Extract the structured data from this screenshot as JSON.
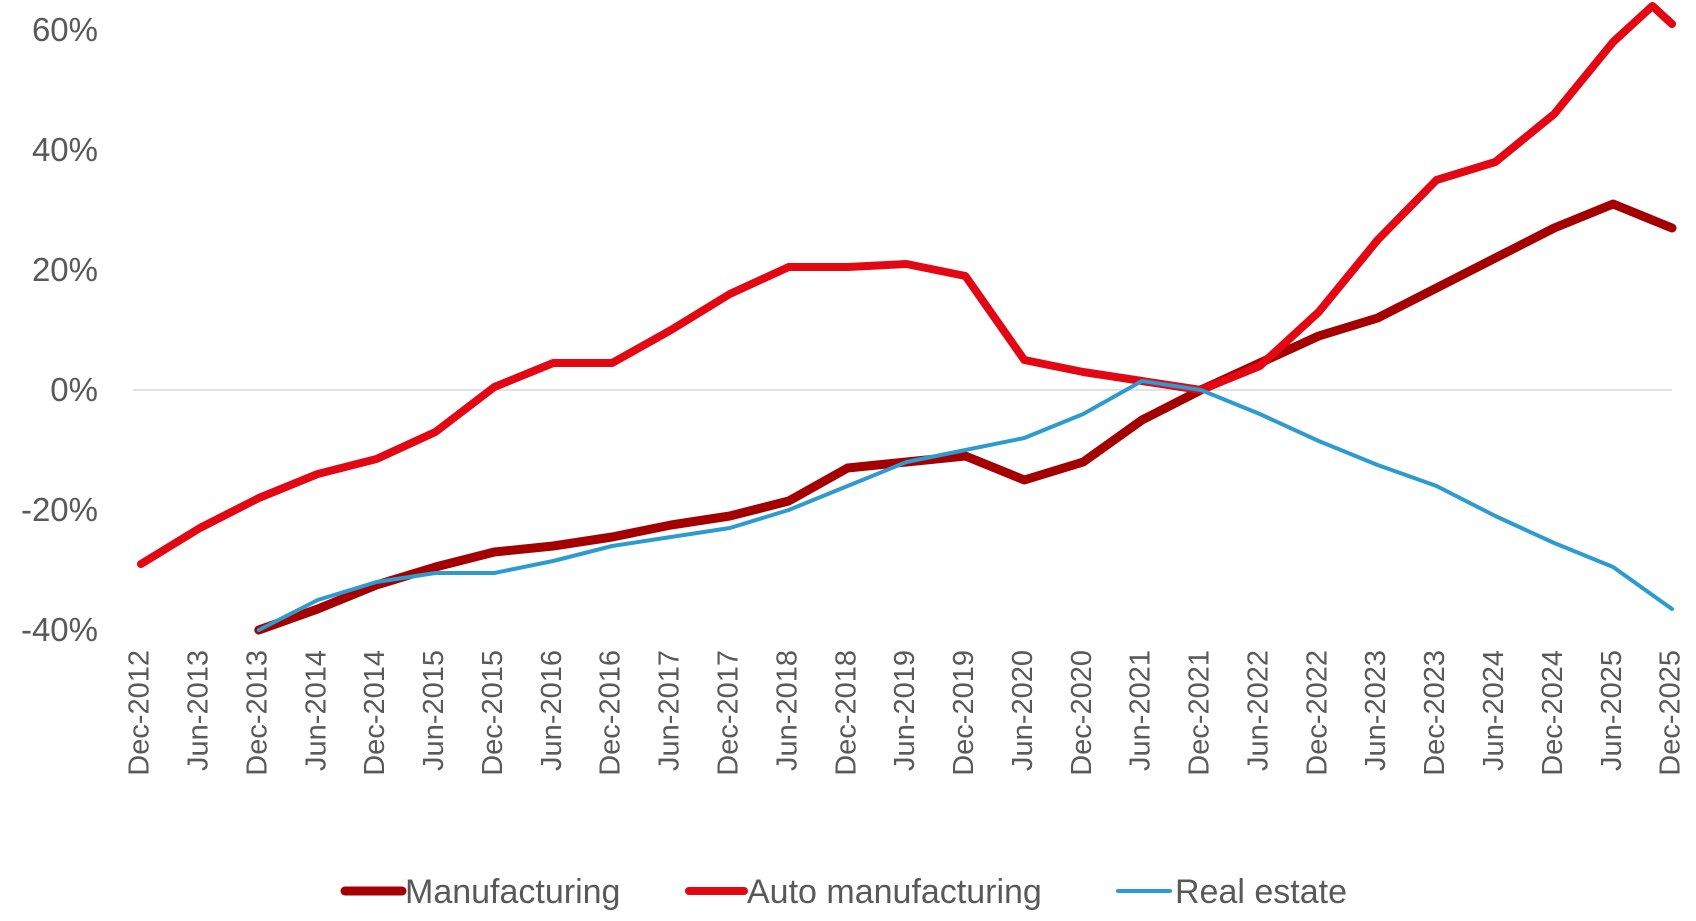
{
  "chart_data": {
    "type": "line",
    "title": "",
    "xlabel": "",
    "ylabel": "",
    "x_ticks": [
      "Dec-2012",
      "Jun-2013",
      "Dec-2013",
      "Jun-2014",
      "Dec-2014",
      "Jun-2015",
      "Dec-2015",
      "Jun-2016",
      "Dec-2016",
      "Jun-2017",
      "Dec-2017",
      "Jun-2018",
      "Dec-2018",
      "Jun-2019",
      "Dec-2019",
      "Jun-2020",
      "Dec-2020",
      "Jun-2021",
      "Dec-2021",
      "Jun-2022",
      "Dec-2022",
      "Jun-2023",
      "Dec-2023",
      "Jun-2024",
      "Dec-2024",
      "Jun-2025",
      "Dec-2025"
    ],
    "y_ticks": [
      "60%",
      "40%",
      "20%",
      "0%",
      "-20%",
      "-40%"
    ],
    "ylim": [
      -40,
      60
    ],
    "grid": false,
    "zero_line": true,
    "legend_position": "bottom",
    "series": [
      {
        "name": "Manufacturing",
        "color": "#a50000",
        "x": [
          "Dec-2013",
          "Jun-2014",
          "Dec-2014",
          "Jun-2015",
          "Dec-2015",
          "Jun-2016",
          "Dec-2016",
          "Jun-2017",
          "Dec-2017",
          "Jun-2018",
          "Dec-2018",
          "Jun-2019",
          "Dec-2019",
          "Jun-2020",
          "Dec-2020",
          "Jun-2021",
          "Dec-2021",
          "Jun-2022",
          "Dec-2022",
          "Jun-2023",
          "Dec-2023",
          "Jun-2024",
          "Dec-2024",
          "Jun-2025",
          "Dec-2025"
        ],
        "values": [
          -40,
          -36.5,
          -32.5,
          -29.5,
          -27,
          -26,
          -24.5,
          -22.5,
          -21,
          -18.5,
          -13,
          -12,
          -11,
          -15,
          -12,
          -5,
          0,
          4.5,
          9,
          12,
          17,
          22,
          27,
          31,
          27
        ]
      },
      {
        "name": "Auto manufacturing",
        "color": "#e30613",
        "x": [
          "Dec-2012",
          "Jun-2013",
          "Dec-2013",
          "Jun-2014",
          "Dec-2014",
          "Jun-2015",
          "Dec-2015",
          "Jun-2016",
          "Dec-2016",
          "Jun-2017",
          "Dec-2017",
          "Jun-2018",
          "Dec-2018",
          "Jun-2019",
          "Dec-2019",
          "Jun-2020",
          "Dec-2020",
          "Jun-2021",
          "Dec-2021",
          "Jun-2022",
          "Dec-2022",
          "Jun-2023",
          "Dec-2023",
          "Jun-2024",
          "Dec-2024",
          "Jun-2025",
          "Oct-2025",
          "Dec-2025"
        ],
        "values": [
          -29,
          -23,
          -18,
          -14,
          -11.5,
          -7,
          0.5,
          4.5,
          4.5,
          10,
          16,
          20.5,
          20.5,
          21,
          19,
          5,
          3,
          1.5,
          0,
          4,
          13,
          25,
          35,
          38,
          46,
          58,
          64,
          61
        ]
      },
      {
        "name": "Real estate",
        "color": "#2e9bcf",
        "x": [
          "Dec-2013",
          "Jun-2014",
          "Dec-2014",
          "Jun-2015",
          "Dec-2015",
          "Jun-2016",
          "Dec-2016",
          "Jun-2017",
          "Dec-2017",
          "Jun-2018",
          "Dec-2018",
          "Jun-2019",
          "Dec-2019",
          "Jun-2020",
          "Dec-2020",
          "Jun-2021",
          "Dec-2021",
          "Jun-2022",
          "Dec-2022",
          "Jun-2023",
          "Dec-2023",
          "Jun-2024",
          "Dec-2024",
          "Jun-2025",
          "Dec-2025"
        ],
        "values": [
          -40,
          -35,
          -32,
          -30.5,
          -30.5,
          -28.5,
          -26,
          -24.5,
          -23,
          -20,
          -16,
          -12,
          -10,
          -8,
          -4,
          1.5,
          0,
          -4,
          -8.5,
          -12.5,
          -16,
          -21,
          -25.5,
          -29.5,
          -36.5
        ]
      }
    ]
  }
}
